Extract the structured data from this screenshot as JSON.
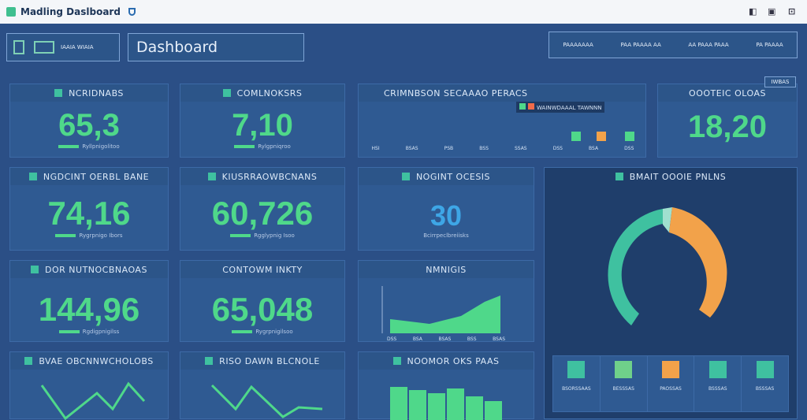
{
  "app": {
    "title": "Madling Daslboard"
  },
  "header": {
    "title": "Dashboard",
    "left_label": "IAAIA WIAIA",
    "right_items": [
      "PAAAAAAA",
      "PAA PAAAA AA",
      "AA PAAA PAAA",
      "PA PAAAA"
    ]
  },
  "kpis": [
    {
      "label": "NCRIDNABS",
      "value": "65,3",
      "sub": "Ryllpnigolitoo"
    },
    {
      "label": "COMLNOKSRS",
      "value": "7,10",
      "sub": "Rylgpniqroo"
    },
    {
      "label": "NGDCINT OERBL BANE",
      "value": "74,16",
      "sub": "Rygrpnigo Ibors"
    },
    {
      "label": "KIUSRRAOWBCNANS",
      "value": "60,726",
      "sub": "Rgglypnig Isoo"
    },
    {
      "label": "NOGINT OCESIS",
      "value": "30",
      "sub": "Bcirrpeclbreiisks"
    },
    {
      "label": "DOR NUTNOCBNAOAS",
      "value": "144,96",
      "sub": "Rgdigpnigilss"
    },
    {
      "label": "CONTOWM INKTY",
      "value": "65,048",
      "sub": "Rygrpnigilsoo"
    },
    {
      "label": "OOOTEIC OLOAS",
      "value": "18,20",
      "sub": ""
    }
  ],
  "panels": {
    "top_chart": "CRIMNBSON SECAAAO PERACS",
    "legend": "WAINWDAAAL TAWNNN",
    "area_chart": "NMNIGIS",
    "bar_chart": "NOOMOR OKS PAAS",
    "line1": "BVAE OBCNNWCHOLOBS",
    "line2": "RISO DAWN BLCNOLE",
    "donut": "BMAIT OOOIE PNLNS",
    "donut_badge": "IWBAS"
  },
  "top_chart_x": [
    "HSI",
    "BSAS",
    "PSB",
    "BSS",
    "SSAS",
    "DSS",
    "BSA",
    "DSS"
  ],
  "area_x": [
    "DSS",
    "BSA",
    "BSAS",
    "BSS",
    "BSAS"
  ],
  "donut_legend": [
    "BSORSSAAS",
    "BESSSAS",
    "PAOSSAS",
    "BSSSAS",
    "BSSSAS"
  ],
  "chart_data": {
    "type": "pie",
    "values": [
      45,
      5,
      50
    ],
    "colors": [
      "#3fc1a0",
      "#9fe0cf",
      "#f2a24a"
    ]
  },
  "colors": {
    "accent": "#4fd88a",
    "teal": "#3fc1a0",
    "orange": "#f2a24a"
  }
}
